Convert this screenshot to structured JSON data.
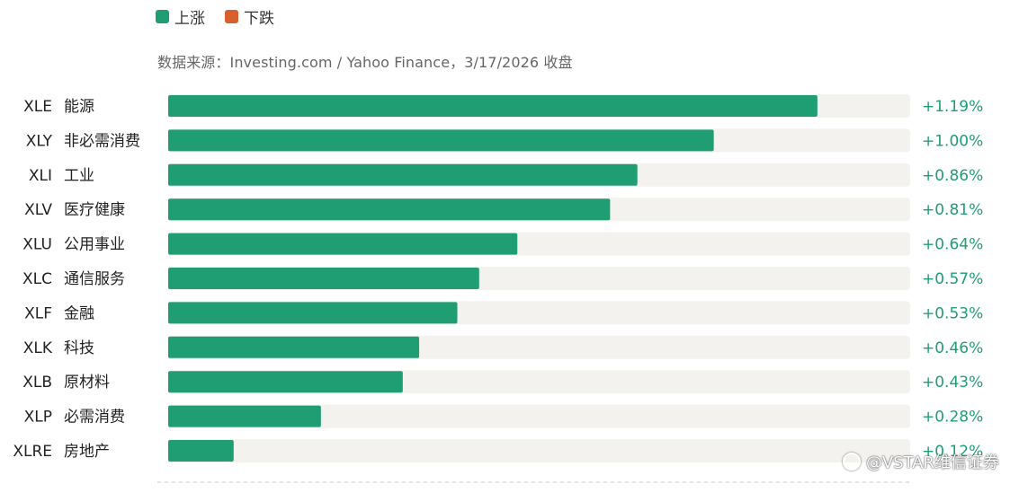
{
  "legend": {
    "up_label": "上涨",
    "down_label": "下跌",
    "up_color": "#1f9e74",
    "down_color": "#d8602f"
  },
  "source_text": "数据来源：Investing.com / Yahoo Finance，3/17/2026 收盘",
  "watermark": "@VSTAR维信证券",
  "chart_data": {
    "type": "bar",
    "orientation": "horizontal",
    "categories": [
      "XLE 能源",
      "XLY 非必需消费",
      "XLI 工业",
      "XLV 医疗健康",
      "XLU 公用事业",
      "XLC 通信服务",
      "XLF 金融",
      "XLK 科技",
      "XLB 原材料",
      "XLP 必需消费",
      "XLRE 房地产"
    ],
    "tickers": [
      "XLE",
      "XLY",
      "XLI",
      "XLV",
      "XLU",
      "XLC",
      "XLF",
      "XLK",
      "XLB",
      "XLP",
      "XLRE"
    ],
    "sectors": [
      "能源",
      "非必需消费",
      "工业",
      "医疗健康",
      "公用事业",
      "通信服务",
      "金融",
      "科技",
      "原材料",
      "必需消费",
      "房地产"
    ],
    "values": [
      1.19,
      1.0,
      0.86,
      0.81,
      0.64,
      0.57,
      0.53,
      0.46,
      0.43,
      0.28,
      0.12
    ],
    "value_labels": [
      "+1.19%",
      "+1.00%",
      "+0.86%",
      "+0.81%",
      "+0.64%",
      "+0.57%",
      "+0.53%",
      "+0.46%",
      "+0.43%",
      "+0.28%",
      "+0.12%"
    ],
    "xlim": [
      0,
      1.36
    ],
    "bar_color": "#1f9e74",
    "track_color": "#f4f2ee",
    "label_color": "#1f9e74",
    "unit": "%"
  }
}
